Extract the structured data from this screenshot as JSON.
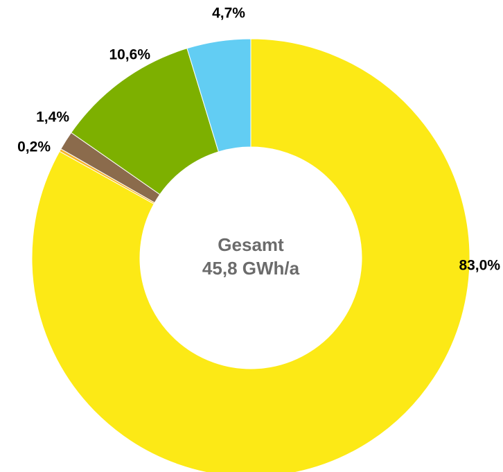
{
  "chart_data": {
    "type": "donut",
    "values": [
      83.0,
      0.2,
      1.4,
      10.6,
      4.7
    ],
    "value_labels": [
      "83,0%",
      "0,2%",
      "1,4%",
      "10,6%",
      "4,7%"
    ],
    "colors": [
      "#FCE916",
      "#F7B52A",
      "#8B6B4C",
      "#7DB000",
      "#62CDF3"
    ],
    "center_label": [
      "Gesamt",
      "45,8 GWh/a"
    ]
  }
}
